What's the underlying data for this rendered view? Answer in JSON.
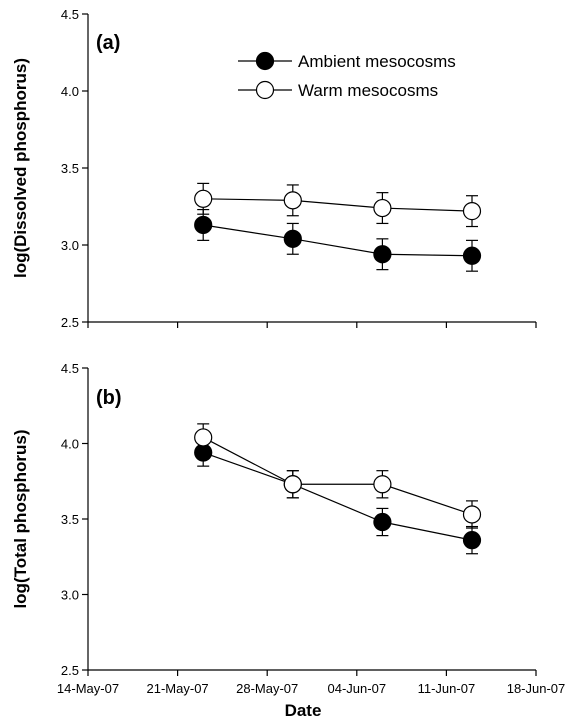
{
  "chart_data": [
    {
      "type": "line",
      "panel_label": "(a)",
      "ylabel": "log(Dissolved phosphorus)",
      "ylim": [
        2.5,
        4.5
      ],
      "yticks": [
        "2.5",
        "3.0",
        "3.5",
        "4.0",
        "4.5"
      ],
      "x": [
        "2007-05-23",
        "2007-05-30",
        "2007-06-06",
        "2007-06-13"
      ],
      "series": [
        {
          "name": "Ambient mesocosms",
          "marker": "filled-circle",
          "values": [
            3.13,
            3.04,
            2.94,
            2.93
          ],
          "errors": [
            0.1,
            0.1,
            0.1,
            0.1
          ]
        },
        {
          "name": "Warm mesocosms",
          "marker": "open-circle",
          "values": [
            3.3,
            3.29,
            3.24,
            3.22
          ],
          "errors": [
            0.1,
            0.1,
            0.1,
            0.1
          ]
        }
      ],
      "legend": "top-right"
    },
    {
      "type": "line",
      "panel_label": "(b)",
      "ylabel": "log(Total phosphorus)",
      "xlabel": "Date",
      "ylim": [
        2.5,
        4.5
      ],
      "yticks": [
        "2.5",
        "3.0",
        "3.5",
        "4.0",
        "4.5"
      ],
      "xlim": [
        "2007-05-14",
        "2007-06-18"
      ],
      "xticks": [
        "14-May-07",
        "21-May-07",
        "28-May-07",
        "04-Jun-07",
        "11-Jun-07",
        "18-Jun-07"
      ],
      "x": [
        "2007-05-23",
        "2007-05-30",
        "2007-06-06",
        "2007-06-13"
      ],
      "series": [
        {
          "name": "Ambient mesocosms",
          "marker": "filled-circle",
          "values": [
            3.94,
            3.73,
            3.48,
            3.36
          ],
          "errors": [
            0.09,
            0.09,
            0.09,
            0.09
          ]
        },
        {
          "name": "Warm mesocosms",
          "marker": "open-circle",
          "values": [
            4.04,
            3.73,
            3.73,
            3.53
          ],
          "errors": [
            0.09,
            0.09,
            0.09,
            0.09
          ]
        }
      ]
    }
  ]
}
